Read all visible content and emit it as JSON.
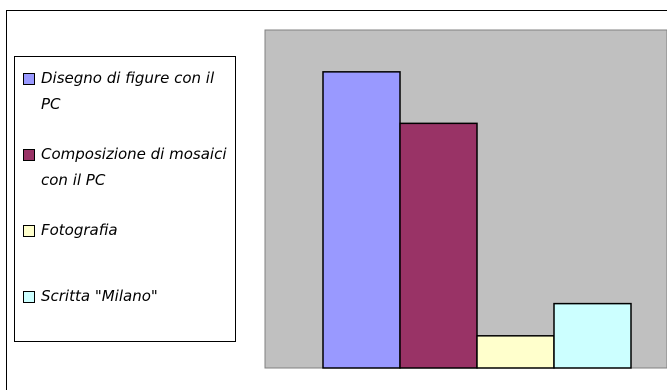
{
  "chart_data": {
    "type": "bar",
    "categories": [
      "Disegno di figure con il PC",
      "Composizione di mosaici con il PC",
      "Fotografia",
      "Scritta \"Milano\""
    ],
    "series": [
      {
        "values": [
          9.2,
          7.6,
          1.0,
          2.0
        ]
      }
    ],
    "colors": [
      "#9999ff",
      "#993366",
      "#ffffcc",
      "#ccffff"
    ],
    "ylim": [
      0,
      10.5
    ],
    "grid": false,
    "legend_position": "left",
    "plot_background": "#c0c0c0"
  }
}
